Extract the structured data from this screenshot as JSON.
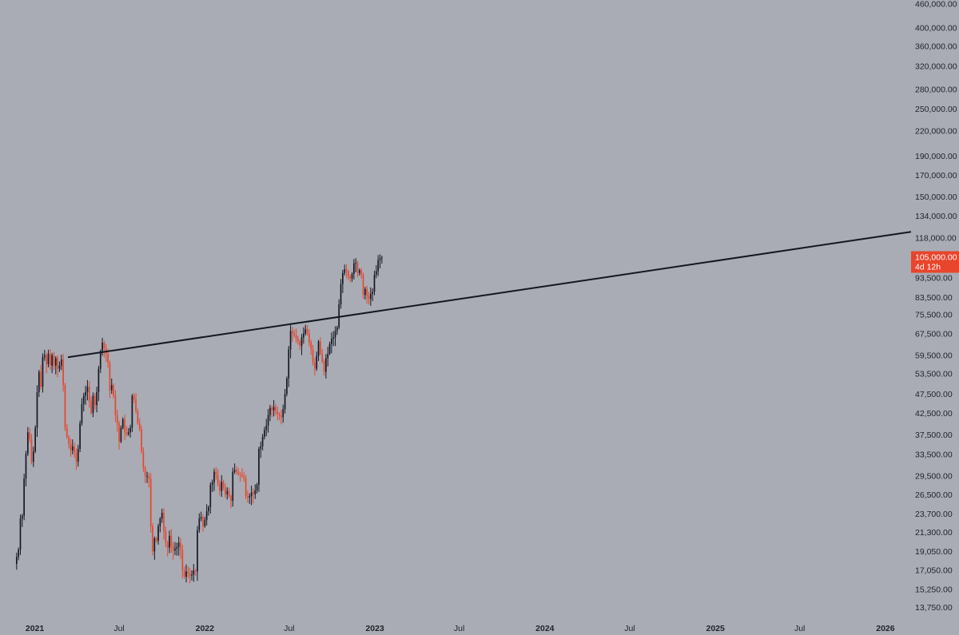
{
  "chart_data": {
    "type": "candlestick",
    "scale": "log",
    "grid": false,
    "legend": "none",
    "y_range": [
      13000,
      470000
    ],
    "x_range": [
      "2020-11-01",
      "2026-02-25"
    ],
    "y_ticks": [
      "460,000.00",
      "400,000.00",
      "360,000.00",
      "320,000.00",
      "280,000.00",
      "250,000.00",
      "220,000.00",
      "190,000.00",
      "170,000.00",
      "150,000.00",
      "134,000.00",
      "118,000.00",
      "93,500.00",
      "83,500.00",
      "75,500.00",
      "67,500.00",
      "59,500.00",
      "53,500.00",
      "47,500.00",
      "42,500.00",
      "37,500.00",
      "33,500.00",
      "29,500.00",
      "26,500.00",
      "23,700.00",
      "21,300.00",
      "19,050.00",
      "17,050.00",
      "15,250.00",
      "13,750.00"
    ],
    "x_ticks": [
      {
        "label": "2021",
        "date": "2021-01-01",
        "year": true
      },
      {
        "label": "Jul",
        "date": "2021-07-01",
        "year": false
      },
      {
        "label": "2022",
        "date": "2022-01-01",
        "year": true
      },
      {
        "label": "Jul",
        "date": "2022-07-01",
        "year": false
      },
      {
        "label": "2023",
        "date": "2023-01-01",
        "year": true
      },
      {
        "label": "Jul",
        "date": "2023-07-01",
        "year": false
      },
      {
        "label": "2024",
        "date": "2024-01-01",
        "year": true
      },
      {
        "label": "Jul",
        "date": "2024-07-01",
        "year": false
      },
      {
        "label": "2025",
        "date": "2025-01-01",
        "year": true
      },
      {
        "label": "Jul",
        "date": "2025-07-01",
        "year": false
      },
      {
        "label": "2026",
        "date": "2026-01-01",
        "year": true
      }
    ],
    "current_price": {
      "label": "105,000.00",
      "countdown": "4d 12h",
      "value": 105000,
      "color": "#e8452c"
    },
    "trend_line": {
      "start": [
        "2021-03-13",
        58800
      ],
      "end": [
        "2026-02-25",
        122000
      ]
    },
    "colors": {
      "up": "#131722",
      "down": "#e8452c",
      "background": "#a9acb4",
      "trend_line": "#131722"
    },
    "candle_interval_days": 4,
    "candle_start_date": "2020-11-23",
    "closes": [
      18400,
      19200,
      23000,
      23400,
      29000,
      33500,
      38000,
      36500,
      32000,
      34000,
      39000,
      48000,
      54000,
      49500,
      58800,
      59500,
      56500,
      60000,
      56000,
      59500,
      56000,
      58500,
      55000,
      56000,
      58000,
      50000,
      39000,
      37000,
      35500,
      34200,
      35000,
      33800,
      32000,
      34500,
      40000,
      44800,
      47000,
      48000,
      49500,
      45500,
      42500,
      47000,
      44500,
      48000,
      55000,
      61000,
      64000,
      62000,
      60000,
      57000,
      48500,
      50000,
      47000,
      42000,
      40000,
      36000,
      39000,
      41000,
      38000,
      37600,
      38000,
      39000,
      47000,
      46000,
      43000,
      40000,
      38700,
      34000,
      31000,
      29500,
      29500,
      29000,
      22000,
      19000,
      20500,
      20200,
      22000,
      23000,
      23800,
      21400,
      20000,
      19400,
      20800,
      19600,
      19100,
      19300,
      19500,
      20000,
      19200,
      17000,
      16400,
      16900,
      16700,
      16500,
      16600,
      17000,
      16900,
      21500,
      23000,
      23200,
      22000,
      22800,
      24000,
      24600,
      28000,
      28400,
      30200,
      29600,
      28200,
      27000,
      28500,
      27500,
      26500,
      27000,
      26200,
      25500,
      30200,
      30500,
      30200,
      29800,
      29700,
      29400,
      29100,
      26200,
      26000,
      26200,
      26800,
      26500,
      27100,
      28000,
      34500,
      35000,
      37000,
      38500,
      39500,
      42000,
      43800,
      43200,
      44000,
      43000,
      42200,
      41800,
      41500,
      43500,
      47500,
      52000,
      61500,
      68500,
      67500,
      66800,
      65500,
      64500,
      62800,
      66000,
      67500,
      69200,
      67600,
      64000,
      61500,
      57000,
      55000,
      59300,
      64500,
      60000,
      57500,
      54000,
      58500,
      60000,
      63500,
      65500,
      66000,
      68500,
      70000,
      80000,
      90000,
      96000,
      98000,
      97000,
      94000,
      93000,
      95500,
      101500,
      102000,
      96000,
      97500,
      95000,
      84500,
      87500,
      84000,
      82500,
      85000,
      86000,
      95000,
      97000,
      103500,
      104500,
      105000
    ]
  }
}
